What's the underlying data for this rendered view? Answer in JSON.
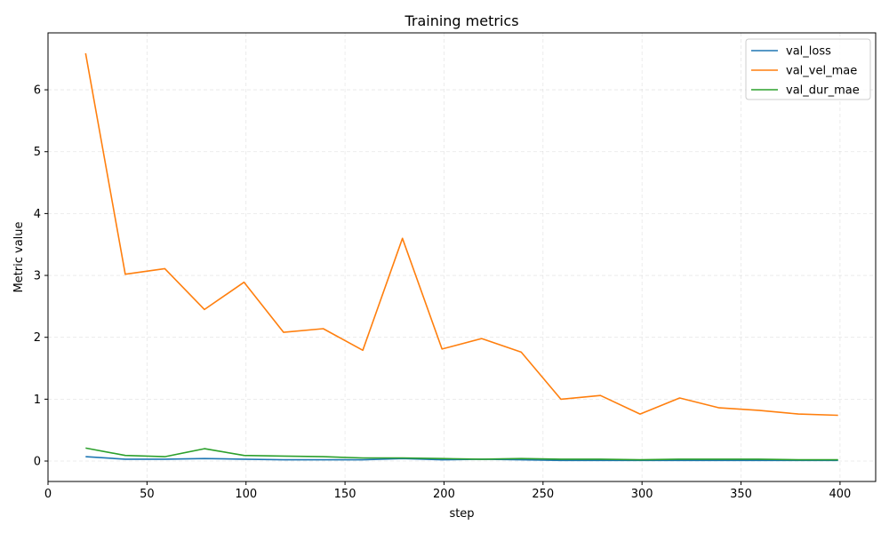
{
  "chart_data": {
    "type": "line",
    "title": "Training metrics",
    "xlabel": "step",
    "ylabel": "Metric value",
    "xlim": [
      0,
      418
    ],
    "ylim": [
      -0.33,
      6.92
    ],
    "xticks": [
      0,
      50,
      100,
      150,
      200,
      250,
      300,
      350,
      400
    ],
    "yticks": [
      0,
      1,
      2,
      3,
      4,
      5,
      6
    ],
    "grid": true,
    "legend_position": "top-right",
    "x": [
      19,
      39,
      59,
      79,
      99,
      119,
      139,
      159,
      179,
      199,
      219,
      239,
      259,
      279,
      299,
      319,
      339,
      359,
      379,
      399
    ],
    "series": [
      {
        "name": "val_loss",
        "color": "#1f77b4",
        "values": [
          0.07,
          0.03,
          0.03,
          0.04,
          0.03,
          0.02,
          0.02,
          0.02,
          0.04,
          0.02,
          0.03,
          0.02,
          0.01,
          0.01,
          0.01,
          0.01,
          0.01,
          0.01,
          0.01,
          0.01
        ]
      },
      {
        "name": "val_vel_mae",
        "color": "#ff7f0e",
        "values": [
          6.59,
          3.02,
          3.11,
          2.45,
          2.89,
          2.08,
          2.14,
          1.79,
          3.6,
          1.81,
          1.98,
          1.76,
          1.0,
          1.06,
          0.76,
          1.02,
          0.86,
          0.82,
          0.76,
          0.74
        ]
      },
      {
        "name": "val_dur_mae",
        "color": "#2ca02c",
        "values": [
          0.21,
          0.09,
          0.07,
          0.2,
          0.09,
          0.08,
          0.07,
          0.05,
          0.05,
          0.04,
          0.03,
          0.04,
          0.03,
          0.03,
          0.02,
          0.03,
          0.03,
          0.03,
          0.02,
          0.02
        ]
      }
    ]
  }
}
